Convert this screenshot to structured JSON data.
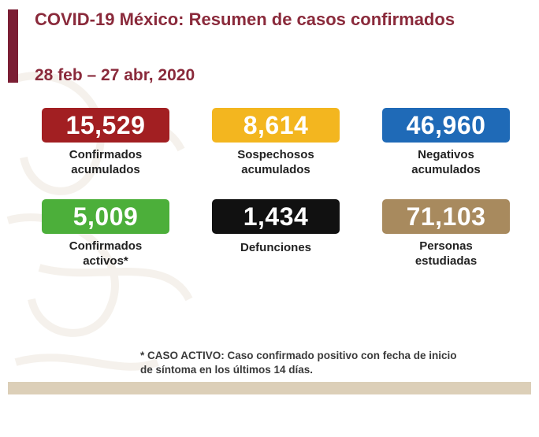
{
  "title": "COVID-19 México: Resumen de casos confirmados",
  "date_range": "28 feb – 27 abr, 2020",
  "colors": {
    "accent": "#7b1e34",
    "title_text": "#8a2a3b",
    "confirmed": "#a21f22",
    "suspected": "#f3b61f",
    "negative": "#1f6ab7",
    "active": "#4caf3a",
    "deaths": "#111111",
    "studied": "#a88a5e",
    "bottom_bar": "#dccfb8"
  },
  "stats": {
    "confirmados_acumulados": {
      "value": "15,529",
      "label_line1": "Confirmados",
      "label_line2": "acumulados"
    },
    "sospechosos_acumulados": {
      "value": "8,614",
      "label_line1": "Sospechosos",
      "label_line2": "acumulados"
    },
    "negativos_acumulados": {
      "value": "46,960",
      "label_line1": "Negativos",
      "label_line2": "acumulados"
    },
    "confirmados_activos": {
      "value": "5,009",
      "label_line1": "Confirmados",
      "label_line2": "activos*"
    },
    "defunciones": {
      "value": "1,434",
      "label_line1": "Defunciones"
    },
    "personas_estudiadas": {
      "value": "71,103",
      "label_line1": "Personas",
      "label_line2": "estudiadas"
    }
  },
  "footnote": {
    "line1": "* CASO ACTIVO: Caso confirmado positivo con fecha de inicio",
    "line2": "de síntoma en los últimos 14 días."
  }
}
